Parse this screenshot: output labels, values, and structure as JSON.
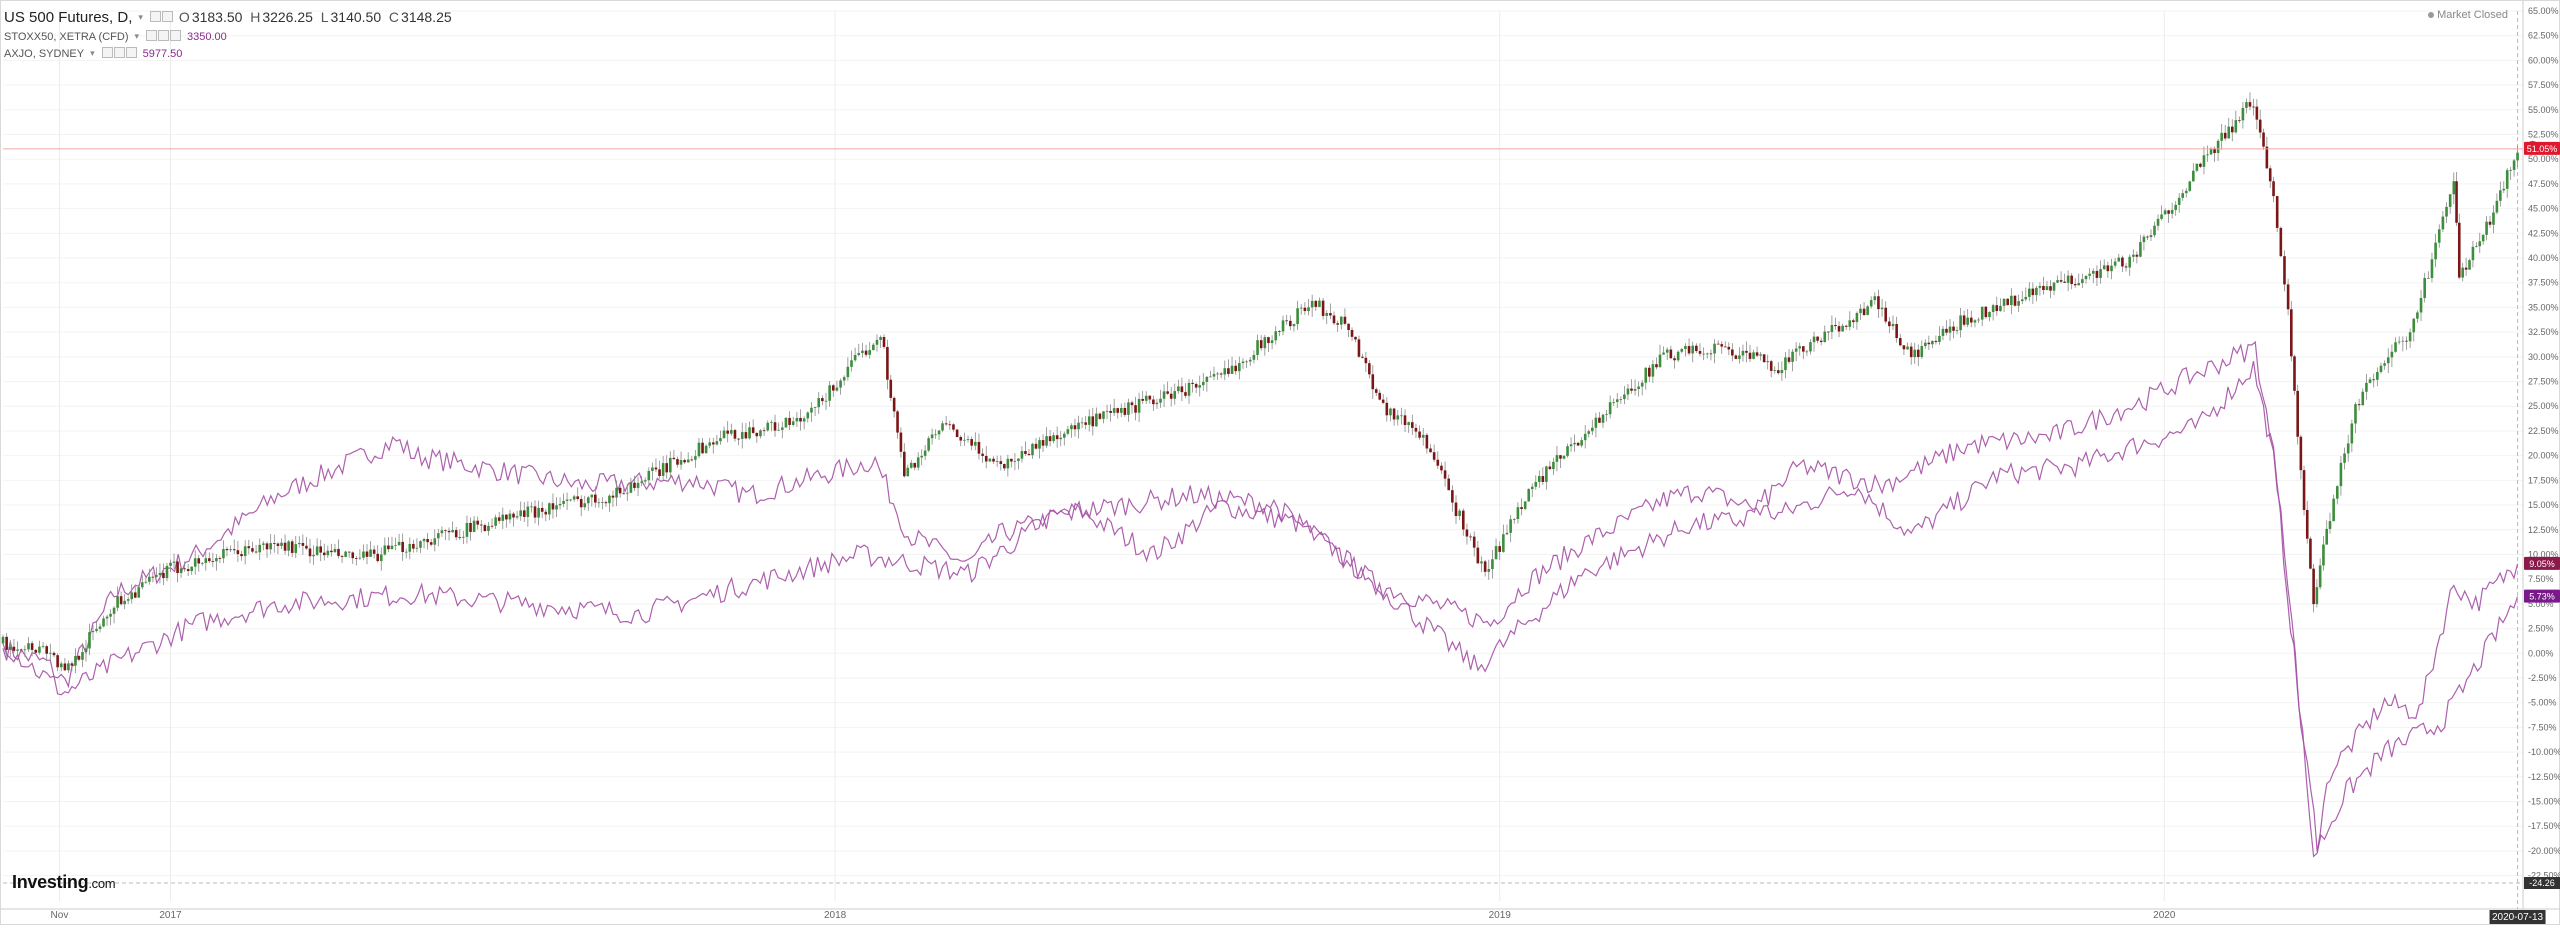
{
  "legend": {
    "main": {
      "symbol": "US 500 Futures, D,",
      "open_label": "O",
      "open": "3183.50",
      "high_label": "H",
      "high": "3226.25",
      "low_label": "L",
      "low": "3140.50",
      "close_label": "C",
      "close": "3148.25"
    },
    "compare": [
      {
        "symbol": "STOXX50, XETRA (CFD)",
        "value": "3350.00",
        "color": "#8b2a8b"
      },
      {
        "symbol": "AXJO, SYDNEY",
        "value": "5977.50",
        "color": "#8b2a8b"
      }
    ]
  },
  "market_status": "Market Closed",
  "logo": {
    "brand": "Investing",
    "suffix": ".com"
  },
  "colors": {
    "up": "#3c8d3c",
    "down": "#7a1616",
    "compare": "#a44fa4",
    "price_line": "#f0a8a0",
    "badge_main": "#e0182d",
    "badge_compare1": "#8b1a4a",
    "badge_compare2": "#7a1a8a",
    "axis_text": "#666",
    "grid": "#f3f3f3"
  },
  "chart_data": {
    "type": "line",
    "y_axis": {
      "unit": "%",
      "min": -24.26,
      "max": 65.0,
      "position": "right",
      "ticks": [
        "65.00%",
        "62.50%",
        "60.00%",
        "57.50%",
        "55.00%",
        "52.50%",
        "50.00%",
        "47.50%",
        "45.00%",
        "42.50%",
        "40.00%",
        "37.50%",
        "35.00%",
        "32.50%",
        "30.00%",
        "27.50%",
        "25.00%",
        "22.50%",
        "20.00%",
        "17.50%",
        "15.00%",
        "12.50%",
        "10.00%",
        "7.50%",
        "5.00%",
        "2.50%",
        "0.00%",
        "-2.50%",
        "-5.00%",
        "-7.50%",
        "-10.00%",
        "-12.50%",
        "-15.00%",
        "-17.50%",
        "-20.00%",
        "-22.50%"
      ]
    },
    "x_axis": {
      "labels": [
        {
          "text": "Nov",
          "date": "2016-11-01"
        },
        {
          "text": "2017",
          "date": "2017-01-01"
        },
        {
          "text": "2018",
          "date": "2018-01-01"
        },
        {
          "text": "2019",
          "date": "2019-01-01"
        },
        {
          "text": "2020",
          "date": "2020-01-01"
        }
      ],
      "range": [
        "2016-10-01",
        "2020-07-16"
      ],
      "current_date": "2020-07-13"
    },
    "grid": true,
    "badges": [
      {
        "text": "51.05%",
        "value": 51.05,
        "series": "US 500 Futures"
      },
      {
        "text": "9.05%",
        "value": 9.05,
        "series": "STOXX50"
      },
      {
        "text": "5.73%",
        "value": 5.73,
        "series": "AXJO"
      }
    ],
    "bottom_badge": "-24.26",
    "series": [
      {
        "name": "US 500 Futures",
        "style": "candlestick",
        "x": [
          "2016-10-01",
          "2016-10-25",
          "2016-11-04",
          "2016-12-01",
          "2017-01-01",
          "2017-02-01",
          "2017-03-01",
          "2017-04-15",
          "2017-06-01",
          "2017-08-01",
          "2017-09-01",
          "2017-11-01",
          "2017-12-15",
          "2018-01-26",
          "2018-02-08",
          "2018-03-01",
          "2018-04-02",
          "2018-05-01",
          "2018-06-15",
          "2018-08-01",
          "2018-09-20",
          "2018-10-10",
          "2018-10-29",
          "2018-11-20",
          "2018-12-24",
          "2019-01-15",
          "2019-02-15",
          "2019-04-01",
          "2019-05-01",
          "2019-06-03",
          "2019-07-26",
          "2019-08-15",
          "2019-09-15",
          "2019-10-15",
          "2019-11-15",
          "2019-12-15",
          "2020-01-15",
          "2020-02-19",
          "2020-03-01",
          "2020-03-09",
          "2020-03-16",
          "2020-03-23",
          "2020-04-01",
          "2020-04-15",
          "2020-05-01",
          "2020-05-15",
          "2020-06-08",
          "2020-06-11",
          "2020-06-26",
          "2020-07-13"
        ],
        "y": [
          1.0,
          0.5,
          -2.0,
          5.0,
          8.5,
          10.0,
          11.0,
          9.5,
          12.0,
          15.0,
          16.0,
          22.0,
          23.5,
          32.5,
          18.0,
          23.0,
          19.0,
          22.0,
          25.0,
          28.0,
          35.5,
          33.0,
          25.0,
          22.0,
          8.0,
          16.0,
          22.0,
          30.0,
          31.0,
          29.0,
          35.5,
          30.0,
          34.0,
          36.0,
          38.0,
          40.0,
          48.0,
          56.0,
          46.0,
          35.0,
          18.0,
          5.0,
          14.0,
          25.0,
          30.0,
          32.0,
          48.0,
          38.0,
          43.0,
          51.05
        ]
      },
      {
        "name": "STOXX50",
        "style": "line",
        "x": [
          "2016-10-01",
          "2016-10-25",
          "2016-11-04",
          "2016-12-01",
          "2017-01-15",
          "2017-03-01",
          "2017-05-05",
          "2017-05-15",
          "2017-07-15",
          "2017-08-15",
          "2017-10-15",
          "2017-11-15",
          "2018-01-23",
          "2018-02-10",
          "2018-03-15",
          "2018-04-01",
          "2018-05-15",
          "2018-06-25",
          "2018-08-01",
          "2018-09-15",
          "2018-10-25",
          "2018-12-27",
          "2019-01-15",
          "2019-02-15",
          "2019-04-01",
          "2019-04-20",
          "2019-06-03",
          "2019-07-15",
          "2019-08-15",
          "2019-10-01",
          "2019-11-15",
          "2019-12-15",
          "2020-01-20",
          "2020-02-19",
          "2020-03-01",
          "2020-03-16",
          "2020-03-25",
          "2020-04-01",
          "2020-05-01",
          "2020-05-20",
          "2020-06-08",
          "2020-06-20",
          "2020-07-13"
        ],
        "y": [
          0.5,
          -1.0,
          -3.0,
          6.0,
          10.0,
          16.0,
          21.5,
          20.0,
          18.0,
          17.0,
          17.5,
          16.0,
          19.5,
          12.0,
          9.0,
          12.0,
          14.5,
          10.0,
          15.0,
          13.0,
          7.0,
          3.0,
          7.0,
          11.0,
          15.5,
          16.5,
          14.0,
          17.0,
          12.0,
          18.0,
          19.0,
          21.0,
          23.0,
          29.0,
          20.0,
          -7.0,
          -19.0,
          -12.0,
          -5.0,
          -6.0,
          7.0,
          5.0,
          9.05
        ]
      },
      {
        "name": "AXJO",
        "style": "line",
        "x": [
          "2016-10-01",
          "2016-11-04",
          "2016-12-01",
          "2017-01-15",
          "2017-03-01",
          "2017-05-15",
          "2017-07-15",
          "2017-09-15",
          "2017-11-15",
          "2018-01-15",
          "2018-02-15",
          "2018-03-15",
          "2018-05-01",
          "2018-07-15",
          "2018-08-30",
          "2018-10-25",
          "2018-12-20",
          "2019-01-15",
          "2019-02-15",
          "2019-04-15",
          "2019-05-15",
          "2019-06-15",
          "2019-07-30",
          "2019-09-15",
          "2019-11-01",
          "2019-12-20",
          "2020-01-15",
          "2020-02-20",
          "2020-03-05",
          "2020-03-23",
          "2020-04-10",
          "2020-05-01",
          "2020-06-01",
          "2020-06-15",
          "2020-07-13"
        ],
        "y": [
          1.0,
          -4.0,
          -1.0,
          3.0,
          5.0,
          6.0,
          5.0,
          4.0,
          7.0,
          10.0,
          9.0,
          8.0,
          14.0,
          16.0,
          15.0,
          7.0,
          -1.5,
          3.0,
          8.0,
          13.0,
          13.5,
          19.0,
          17.0,
          21.0,
          22.0,
          25.5,
          28.0,
          31.0,
          15.0,
          -20.5,
          -14.0,
          -10.0,
          -7.0,
          -3.0,
          5.73
        ]
      }
    ]
  }
}
